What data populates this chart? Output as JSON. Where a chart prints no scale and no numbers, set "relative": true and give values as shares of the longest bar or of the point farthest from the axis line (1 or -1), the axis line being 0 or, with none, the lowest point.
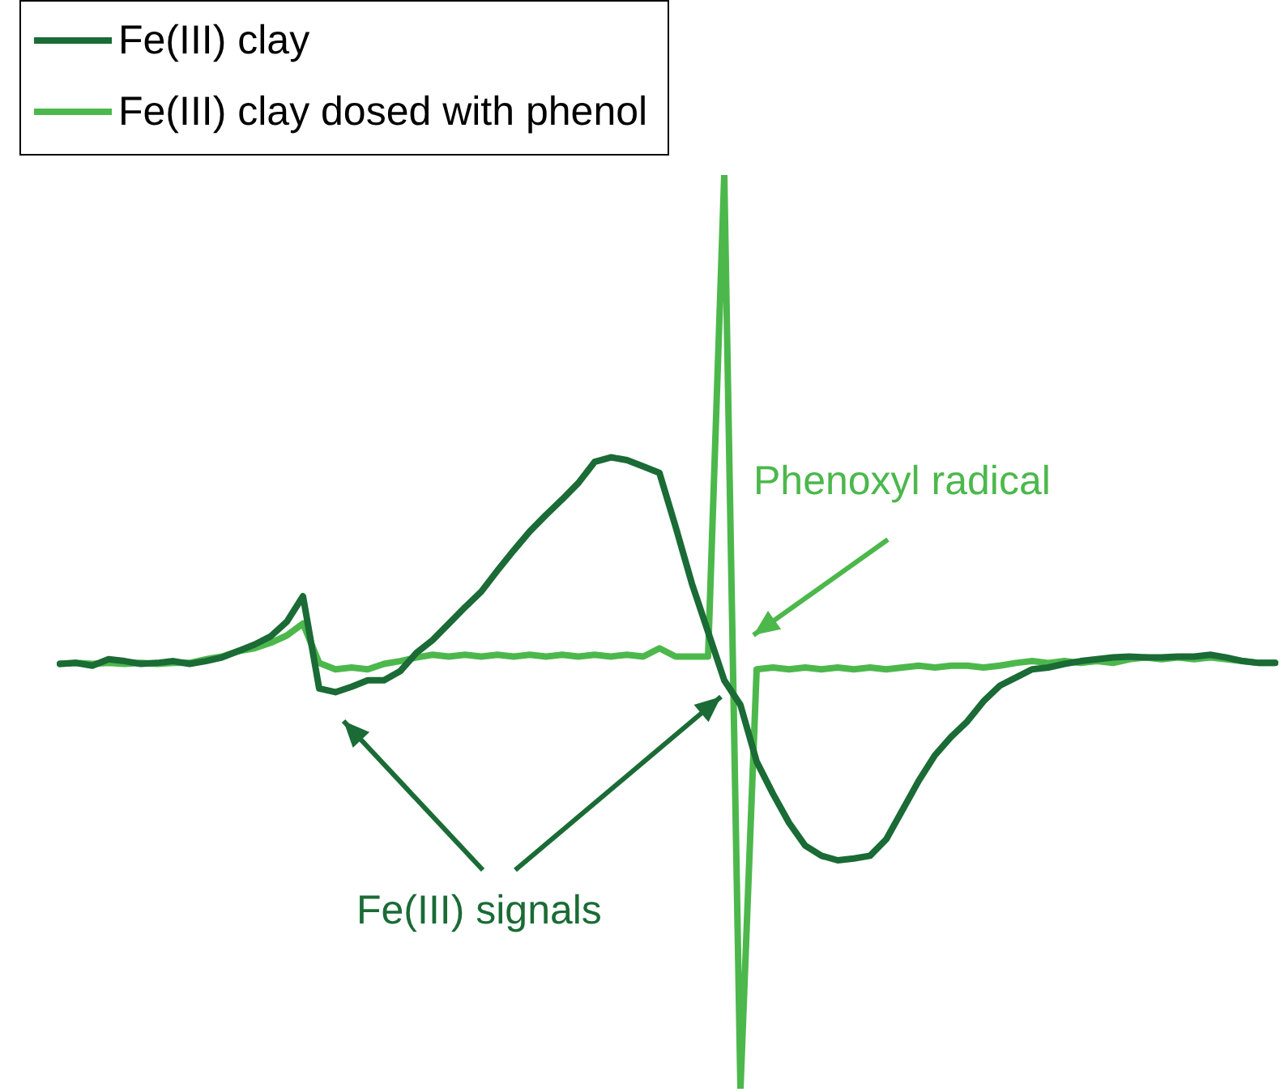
{
  "chart_data": {
    "type": "line",
    "relative": true,
    "legend": "top left",
    "marker": "none",
    "line_style": "solid",
    "categories": [
      null,
      null,
      null,
      null,
      null,
      null,
      null,
      null,
      null,
      null,
      null,
      null,
      null,
      null,
      null,
      null,
      null,
      null,
      null,
      null,
      null,
      null,
      null,
      null,
      null,
      null,
      null,
      null,
      null,
      null,
      null,
      null,
      null,
      null,
      null,
      null,
      null,
      null,
      null,
      null,
      null,
      null,
      null,
      null,
      null,
      null,
      null,
      null,
      null,
      null,
      null,
      null,
      null,
      null,
      null,
      null,
      null,
      null,
      null,
      null,
      null,
      null,
      null,
      null,
      null,
      null,
      null,
      null,
      null,
      null,
      null,
      null,
      null,
      null,
      null,
      null
    ],
    "series": [
      {
        "name": "Fe(III) clay",
        "color": "#1a6b35",
        "values": [
          0.465,
          0.466,
          0.463,
          0.47,
          0.468,
          0.465,
          0.466,
          0.468,
          0.465,
          0.468,
          0.472,
          0.479,
          0.486,
          0.495,
          0.511,
          0.539,
          0.438,
          0.434,
          0.44,
          0.447,
          0.447,
          0.457,
          0.477,
          0.491,
          0.509,
          0.527,
          0.544,
          0.567,
          0.589,
          0.61,
          0.628,
          0.645,
          0.663,
          0.686,
          0.691,
          0.688,
          0.681,
          0.674,
          0.615,
          0.553,
          0.5,
          0.447,
          0.42,
          0.358,
          0.323,
          0.291,
          0.266,
          0.255,
          0.25,
          0.252,
          0.255,
          0.273,
          0.305,
          0.337,
          0.365,
          0.385,
          0.402,
          0.424,
          0.441,
          0.45,
          0.459,
          0.461,
          0.465,
          0.468,
          0.47,
          0.472,
          0.473,
          0.472,
          0.472,
          0.473,
          0.473,
          0.475,
          0.472,
          0.468,
          0.466,
          0.466
        ]
      },
      {
        "name": "Fe(III) clay dosed with phenol",
        "color": "#4cb84c",
        "values": [
          0.465,
          0.466,
          0.465,
          0.466,
          0.465,
          0.466,
          0.465,
          0.466,
          0.466,
          0.47,
          0.473,
          0.479,
          0.482,
          0.488,
          0.496,
          0.509,
          0.466,
          0.459,
          0.461,
          0.459,
          0.465,
          0.468,
          0.472,
          0.475,
          0.473,
          0.475,
          0.473,
          0.475,
          0.473,
          0.475,
          0.473,
          0.475,
          0.473,
          0.475,
          0.473,
          0.475,
          0.473,
          0.482,
          0.473,
          0.473,
          0.473,
          1,
          0,
          0.459,
          0.461,
          0.459,
          0.461,
          0.459,
          0.461,
          0.459,
          0.461,
          0.459,
          0.461,
          0.463,
          0.461,
          0.463,
          0.463,
          0.461,
          0.463,
          0.466,
          0.468,
          0.466,
          0.468,
          0.466,
          0.468,
          0.466,
          0.47,
          0.472,
          0.47,
          0.472,
          0.47,
          0.472,
          0.47,
          0.468,
          0.466,
          0.466
        ]
      }
    ],
    "annotations": [
      "Phenoxyl radical",
      "Fe(III) signals"
    ]
  }
}
